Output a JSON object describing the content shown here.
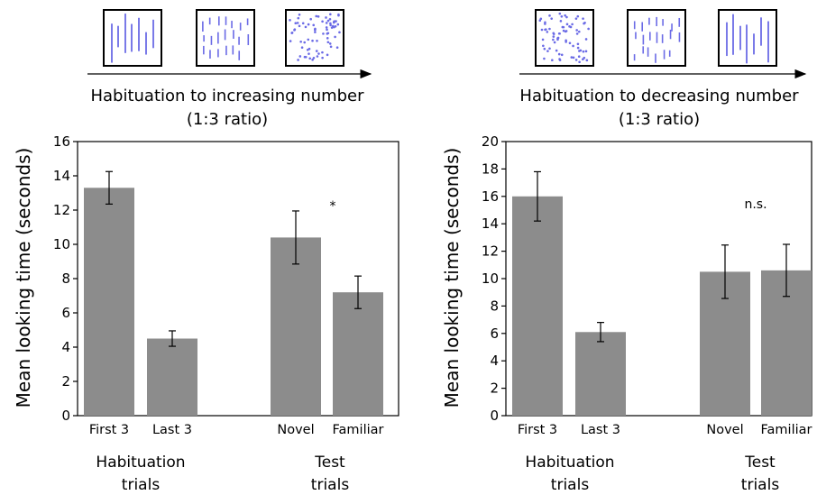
{
  "chart_data": [
    {
      "type": "bar",
      "title": "Habituation to increasing number",
      "subtitle": "(1:3 ratio)",
      "ylabel": "Mean looking time (seconds)",
      "xlabel": "",
      "ylim": [
        0,
        16
      ],
      "yticks": [
        0,
        2,
        4,
        6,
        8,
        10,
        12,
        14,
        16
      ],
      "categories": [
        "First 3",
        "Last 3",
        "Novel",
        "Familiar"
      ],
      "values": [
        13.3,
        4.5,
        10.4,
        7.2
      ],
      "error": [
        0.95,
        0.45,
        1.55,
        0.95
      ],
      "groups": [
        {
          "label_line1": "Habituation",
          "label_line2": "trials"
        },
        {
          "label_line1": "Test",
          "label_line2": "trials"
        }
      ],
      "annotation": "*",
      "stimuli": [
        "lines-sparse",
        "lines-medium",
        "dots-dense"
      ],
      "bar_color": "#8c8c8c",
      "stimulus_color": "#6b6be6"
    },
    {
      "type": "bar",
      "title": "Habituation to decreasing number",
      "subtitle": "(1:3 ratio)",
      "ylabel": "Mean looking time (seconds)",
      "xlabel": "",
      "ylim": [
        0,
        20
      ],
      "yticks": [
        0,
        2,
        4,
        6,
        8,
        10,
        12,
        14,
        16,
        18,
        20
      ],
      "categories": [
        "First 3",
        "Last 3",
        "Novel",
        "Familiar"
      ],
      "values": [
        16.0,
        6.1,
        10.5,
        10.6
      ],
      "error": [
        1.8,
        0.7,
        1.95,
        1.9
      ],
      "groups": [
        {
          "label_line1": "Habituation",
          "label_line2": "trials"
        },
        {
          "label_line1": "Test",
          "label_line2": "trials"
        }
      ],
      "annotation": "n.s.",
      "stimuli": [
        "dots-dense",
        "lines-medium",
        "lines-sparse"
      ],
      "bar_color": "#8c8c8c",
      "stimulus_color": "#6b6be6"
    }
  ]
}
